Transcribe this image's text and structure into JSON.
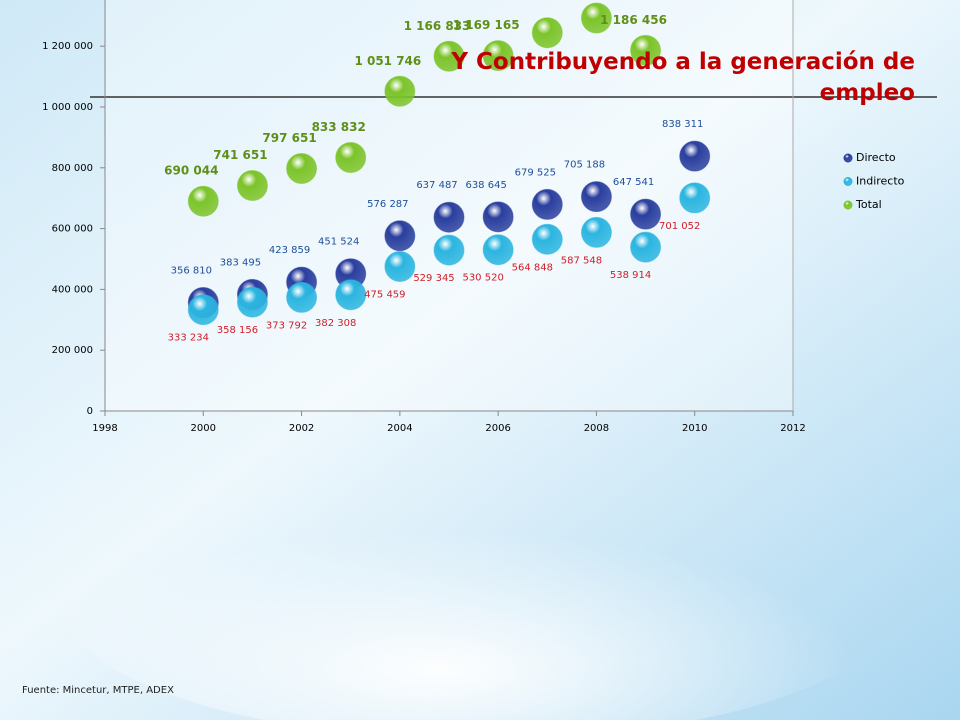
{
  "chart_data": {
    "type": "scatter",
    "title": "Y Contribuyendo a la generación de empleo",
    "source": "Fuente: Mincetur, MTPE, ADEX",
    "x": [
      2000,
      2001,
      2002,
      2003,
      2004,
      2005,
      2006,
      2007,
      2008,
      2009,
      2010
    ],
    "xlim": [
      1998,
      2012
    ],
    "xticks": [
      1998,
      2000,
      2002,
      2004,
      2006,
      2008,
      2010,
      2012
    ],
    "ylim": [
      0,
      1350000
    ],
    "yticks": [
      0,
      {
        "value": 200000,
        "label": "200 000"
      },
      {
        "value": 400000,
        "label": "400 000"
      },
      {
        "value": 600000,
        "label": "600 000"
      },
      {
        "value": 800000,
        "label": "800 000"
      },
      {
        "value": 1000000,
        "label": "1 000 000"
      },
      {
        "value": 1200000,
        "label": "1 200 000"
      }
    ],
    "legend": "right",
    "series": [
      {
        "name": "Directo",
        "color": "#2a3f9e",
        "label_color": "#1f4e9a",
        "values": [
          356810,
          383495,
          423859,
          451524,
          576287,
          637487,
          638645,
          679525,
          705188,
          647541,
          838311
        ],
        "value_labels": [
          "356 810",
          "383 495",
          "423 859",
          "451 524",
          "576 287",
          "637 487",
          "638 645",
          "679 525",
          "705 188",
          "647 541",
          "838 311"
        ]
      },
      {
        "name": "Indirecto",
        "color": "#2bb5e0",
        "label_color": "#d0202a",
        "values": [
          333234,
          358156,
          373792,
          382308,
          475459,
          529345,
          530520,
          564848,
          587548,
          538914,
          701052
        ],
        "value_labels": [
          "333 234",
          "358 156",
          "373 792",
          "382 308",
          "475 459",
          "529 345",
          "530 520",
          "564 848",
          "587 548",
          "538 914",
          "701 052"
        ]
      },
      {
        "name": "Total",
        "color": "#7cc42a",
        "label_color": "#5f8f18",
        "values": [
          690044,
          741651,
          797651,
          833832,
          1051746,
          1166833,
          1169165,
          1244373,
          1292736,
          1186456,
          null
        ],
        "value_labels": [
          "690 044",
          "741 651",
          "797 651",
          "833 832",
          "1 051 746",
          "1 166 833",
          "1 169 165",
          null,
          null,
          "1 186 456",
          null
        ]
      }
    ]
  }
}
